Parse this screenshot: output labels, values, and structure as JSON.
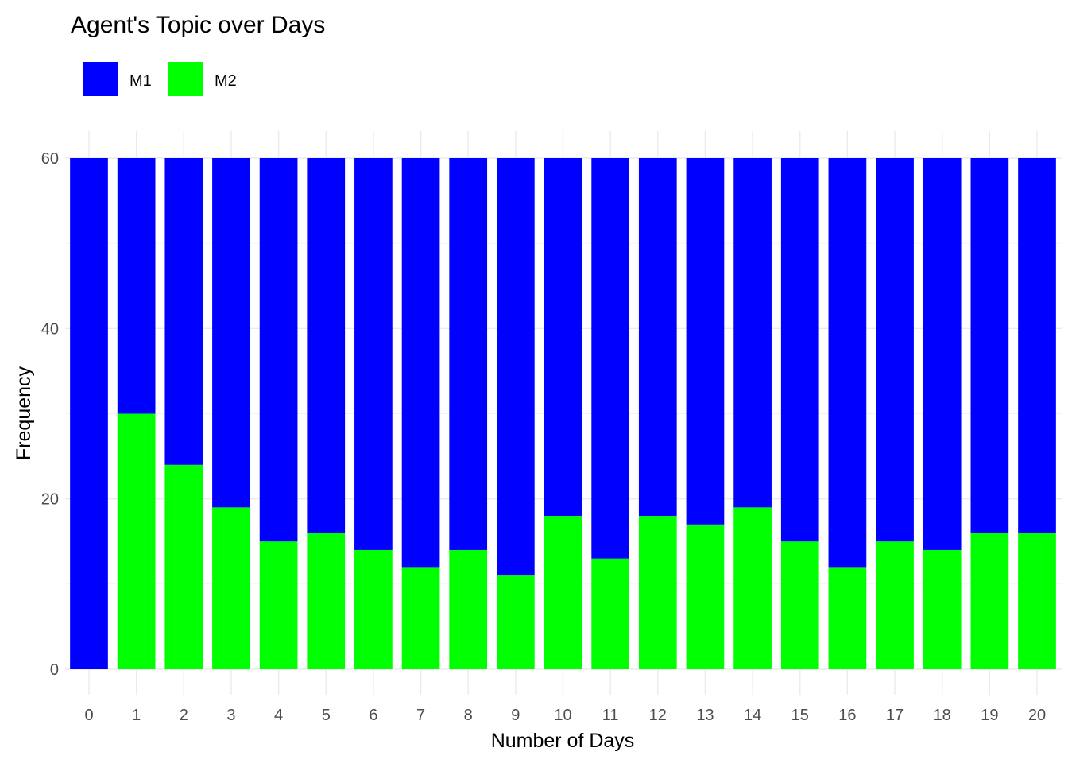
{
  "chart_data": {
    "type": "bar",
    "stacked": true,
    "title": "Agent's Topic over Days",
    "xlabel": "Number of Days",
    "ylabel": "Frequency",
    "categories": [
      "0",
      "1",
      "2",
      "3",
      "4",
      "5",
      "6",
      "7",
      "8",
      "9",
      "10",
      "11",
      "12",
      "13",
      "14",
      "15",
      "16",
      "17",
      "18",
      "19",
      "20"
    ],
    "ylim": [
      0,
      60
    ],
    "yticks": [
      0,
      20,
      40,
      60
    ],
    "grid": true,
    "legend_position": "top-left",
    "series": [
      {
        "name": "M1",
        "color": "#0000FF",
        "values": [
          60,
          30,
          36,
          41,
          45,
          44,
          46,
          48,
          46,
          49,
          42,
          47,
          42,
          43,
          41,
          45,
          48,
          45,
          46,
          44,
          44
        ]
      },
      {
        "name": "M2",
        "color": "#00FF00",
        "values": [
          0,
          30,
          24,
          19,
          15,
          16,
          14,
          12,
          14,
          11,
          18,
          13,
          18,
          17,
          19,
          15,
          12,
          15,
          14,
          16,
          16
        ]
      }
    ]
  }
}
